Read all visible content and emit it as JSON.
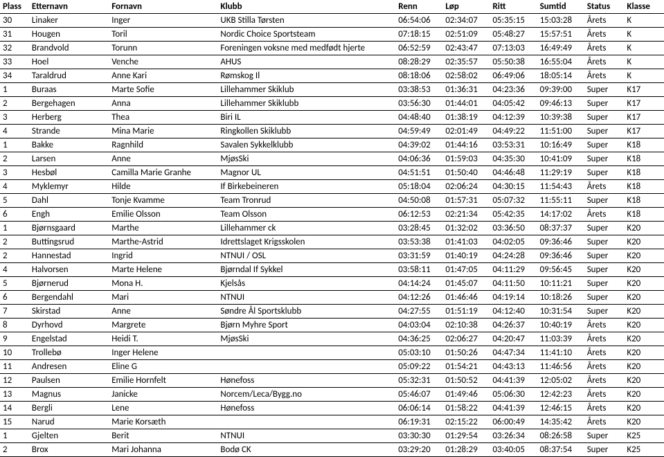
{
  "columns": [
    {
      "key": "plass",
      "label": "Plass",
      "cls": "c-plass"
    },
    {
      "key": "etternavn",
      "label": "Etternavn",
      "cls": "c-etternavn"
    },
    {
      "key": "fornavn",
      "label": "Fornavn",
      "cls": "c-fornavn"
    },
    {
      "key": "klubb",
      "label": "Klubb",
      "cls": "c-klubb"
    },
    {
      "key": "renn",
      "label": "Renn",
      "cls": "c-renn"
    },
    {
      "key": "lop",
      "label": "Løp",
      "cls": "c-lop"
    },
    {
      "key": "ritt",
      "label": "Ritt",
      "cls": "c-ritt"
    },
    {
      "key": "sumtid",
      "label": "Sumtid",
      "cls": "c-sumtid"
    },
    {
      "key": "status",
      "label": "Status",
      "cls": "c-status"
    },
    {
      "key": "klasse",
      "label": "Klasse",
      "cls": "c-klasse"
    }
  ],
  "rows": [
    {
      "plass": "30",
      "etternavn": "Linaker",
      "fornavn": "Inger",
      "klubb": "UKB Stilla Tørsten",
      "renn": "06:54:06",
      "lop": "02:34:07",
      "ritt": "05:35:15",
      "sumtid": "15:03:28",
      "status": "Årets",
      "klasse": "K"
    },
    {
      "plass": "31",
      "etternavn": "Hougen",
      "fornavn": "Toril",
      "klubb": "Nordic Choice Sportsteam",
      "renn": "07:18:15",
      "lop": "02:51:09",
      "ritt": "05:48:27",
      "sumtid": "15:57:51",
      "status": "Årets",
      "klasse": "K"
    },
    {
      "plass": "32",
      "etternavn": "Brandvold",
      "fornavn": "Torunn",
      "klubb": "Foreningen voksne med medfødt hjerte",
      "renn": "06:52:59",
      "lop": "02:43:47",
      "ritt": "07:13:03",
      "sumtid": "16:49:49",
      "status": "Årets",
      "klasse": "K"
    },
    {
      "plass": "33",
      "etternavn": "Hoel",
      "fornavn": "Venche",
      "klubb": "AHUS",
      "renn": "08:28:29",
      "lop": "02:35:57",
      "ritt": "05:50:38",
      "sumtid": "16:55:04",
      "status": "Årets",
      "klasse": "K"
    },
    {
      "plass": "34",
      "etternavn": "Taraldrud",
      "fornavn": "Anne Kari",
      "klubb": "Rømskog Il",
      "renn": "08:18:06",
      "lop": "02:58:02",
      "ritt": "06:49:06",
      "sumtid": "18:05:14",
      "status": "Årets",
      "klasse": "K"
    },
    {
      "plass": "1",
      "etternavn": "Buraas",
      "fornavn": "Marte Sofie",
      "klubb": "Lillehammer Skiklub",
      "renn": "03:38:53",
      "lop": "01:36:31",
      "ritt": "04:23:36",
      "sumtid": "09:39:00",
      "status": "Super",
      "klasse": "K17"
    },
    {
      "plass": "2",
      "etternavn": "Bergehagen",
      "fornavn": "Anna",
      "klubb": "Lillehammer Skiklubb",
      "renn": "03:56:30",
      "lop": "01:44:01",
      "ritt": "04:05:42",
      "sumtid": "09:46:13",
      "status": "Super",
      "klasse": "K17"
    },
    {
      "plass": "3",
      "etternavn": "Herberg",
      "fornavn": "Thea",
      "klubb": "Biri IL",
      "renn": "04:48:40",
      "lop": "01:38:19",
      "ritt": "04:12:39",
      "sumtid": "10:39:38",
      "status": "Super",
      "klasse": "K17"
    },
    {
      "plass": "4",
      "etternavn": "Strande",
      "fornavn": "Mina Marie",
      "klubb": "Ringkollen Skiklubb",
      "renn": "04:59:49",
      "lop": "02:01:49",
      "ritt": "04:49:22",
      "sumtid": "11:51:00",
      "status": "Super",
      "klasse": "K17"
    },
    {
      "plass": "1",
      "etternavn": "Bakke",
      "fornavn": "Ragnhild",
      "klubb": "Savalen Sykkelklubb",
      "renn": "04:39:02",
      "lop": "01:44:16",
      "ritt": "03:53:31",
      "sumtid": "10:16:49",
      "status": "Super",
      "klasse": "K18"
    },
    {
      "plass": "2",
      "etternavn": "Larsen",
      "fornavn": "Anne",
      "klubb": "MjøsSki",
      "renn": "04:06:36",
      "lop": "01:59:03",
      "ritt": "04:35:30",
      "sumtid": "10:41:09",
      "status": "Super",
      "klasse": "K18"
    },
    {
      "plass": "3",
      "etternavn": "Hesbøl",
      "fornavn": "Camilla Marie Granhe",
      "klubb": "Magnor UL",
      "renn": "04:51:51",
      "lop": "01:50:40",
      "ritt": "04:46:48",
      "sumtid": "11:29:19",
      "status": "Super",
      "klasse": "K18"
    },
    {
      "plass": "4",
      "etternavn": "Myklemyr",
      "fornavn": "Hilde",
      "klubb": "If Birkebeineren",
      "renn": "05:18:04",
      "lop": "02:06:24",
      "ritt": "04:30:15",
      "sumtid": "11:54:43",
      "status": "Årets",
      "klasse": "K18"
    },
    {
      "plass": "5",
      "etternavn": "Dahl",
      "fornavn": "Tonje Kvamme",
      "klubb": "Team Tronrud",
      "renn": "04:50:08",
      "lop": "01:57:31",
      "ritt": "05:07:32",
      "sumtid": "11:55:11",
      "status": "Super",
      "klasse": "K18"
    },
    {
      "plass": "6",
      "etternavn": "Engh",
      "fornavn": "Emilie Olsson",
      "klubb": "Team Olsson",
      "renn": "06:12:53",
      "lop": "02:21:34",
      "ritt": "05:42:35",
      "sumtid": "14:17:02",
      "status": "Årets",
      "klasse": "K18"
    },
    {
      "plass": "1",
      "etternavn": "Bjørnsgaard",
      "fornavn": "Marthe",
      "klubb": "Lillehammer ck",
      "renn": "03:28:45",
      "lop": "01:32:02",
      "ritt": "03:36:50",
      "sumtid": "08:37:37",
      "status": "Super",
      "klasse": "K20"
    },
    {
      "plass": "2",
      "etternavn": "Buttingsrud",
      "fornavn": "Marthe-Astrid",
      "klubb": "Idrettslaget Krigsskolen",
      "renn": "03:53:38",
      "lop": "01:41:03",
      "ritt": "04:02:05",
      "sumtid": "09:36:46",
      "status": "Super",
      "klasse": "K20"
    },
    {
      "plass": "2",
      "etternavn": "Hannestad",
      "fornavn": "Ingrid",
      "klubb": "NTNUI / OSL",
      "renn": "03:31:59",
      "lop": "01:40:19",
      "ritt": "04:24:28",
      "sumtid": "09:36:46",
      "status": "Super",
      "klasse": "K20"
    },
    {
      "plass": "4",
      "etternavn": "Halvorsen",
      "fornavn": "Marte Helene",
      "klubb": "Bjørndal If Sykkel",
      "renn": "03:58:11",
      "lop": "01:47:05",
      "ritt": "04:11:29",
      "sumtid": "09:56:45",
      "status": "Super",
      "klasse": "K20"
    },
    {
      "plass": "5",
      "etternavn": "Bjørnerud",
      "fornavn": "Mona H.",
      "klubb": "Kjelsås",
      "renn": "04:14:24",
      "lop": "01:45:07",
      "ritt": "04:11:50",
      "sumtid": "10:11:21",
      "status": "Super",
      "klasse": "K20"
    },
    {
      "plass": "6",
      "etternavn": "Bergendahl",
      "fornavn": "Mari",
      "klubb": "NTNUI",
      "renn": "04:12:26",
      "lop": "01:46:46",
      "ritt": "04:19:14",
      "sumtid": "10:18:26",
      "status": "Super",
      "klasse": "K20"
    },
    {
      "plass": "7",
      "etternavn": "Skirstad",
      "fornavn": "Anne",
      "klubb": "Søndre Ål Sportsklubb",
      "renn": "04:27:55",
      "lop": "01:51:19",
      "ritt": "04:12:40",
      "sumtid": "10:31:54",
      "status": "Super",
      "klasse": "K20"
    },
    {
      "plass": "8",
      "etternavn": "Dyrhovd",
      "fornavn": "Margrete",
      "klubb": "Bjørn Myhre Sport",
      "renn": "04:03:04",
      "lop": "02:10:38",
      "ritt": "04:26:37",
      "sumtid": "10:40:19",
      "status": "Årets",
      "klasse": "K20"
    },
    {
      "plass": "9",
      "etternavn": "Engelstad",
      "fornavn": "Heidi T.",
      "klubb": "MjøsSki",
      "renn": "04:36:25",
      "lop": "02:06:27",
      "ritt": "04:20:47",
      "sumtid": "11:03:39",
      "status": "Årets",
      "klasse": "K20"
    },
    {
      "plass": "10",
      "etternavn": "Trollebø",
      "fornavn": "Inger Helene",
      "klubb": "",
      "renn": "05:03:10",
      "lop": "01:50:26",
      "ritt": "04:47:34",
      "sumtid": "11:41:10",
      "status": "Årets",
      "klasse": "K20"
    },
    {
      "plass": "11",
      "etternavn": "Andresen",
      "fornavn": "Eline G",
      "klubb": "",
      "renn": "05:09:22",
      "lop": "01:54:21",
      "ritt": "04:43:13",
      "sumtid": "11:46:56",
      "status": "Årets",
      "klasse": "K20"
    },
    {
      "plass": "12",
      "etternavn": "Paulsen",
      "fornavn": "Emilie Hornfelt",
      "klubb": "Hønefoss",
      "renn": "05:32:31",
      "lop": "01:50:52",
      "ritt": "04:41:39",
      "sumtid": "12:05:02",
      "status": "Årets",
      "klasse": "K20"
    },
    {
      "plass": "13",
      "etternavn": "Magnus",
      "fornavn": "Janicke",
      "klubb": "Norcem/Leca/Bygg.no",
      "renn": "05:46:07",
      "lop": "01:49:46",
      "ritt": "05:06:30",
      "sumtid": "12:42:23",
      "status": "Årets",
      "klasse": "K20"
    },
    {
      "plass": "14",
      "etternavn": "Bergli",
      "fornavn": "Lene",
      "klubb": "Hønefoss",
      "renn": "06:06:14",
      "lop": "01:58:22",
      "ritt": "04:41:39",
      "sumtid": "12:46:15",
      "status": "Årets",
      "klasse": "K20"
    },
    {
      "plass": "15",
      "etternavn": "Narud",
      "fornavn": "Marie Korsæth",
      "klubb": "",
      "renn": "06:19:31",
      "lop": "02:15:22",
      "ritt": "06:00:49",
      "sumtid": "14:35:42",
      "status": "Årets",
      "klasse": "K20"
    },
    {
      "plass": "1",
      "etternavn": "Gjelten",
      "fornavn": "Berit",
      "klubb": "NTNUI",
      "renn": "03:30:30",
      "lop": "01:29:54",
      "ritt": "03:26:34",
      "sumtid": "08:26:58",
      "status": "Super",
      "klasse": "K25"
    },
    {
      "plass": "2",
      "etternavn": "Brox",
      "fornavn": "Mari Johanna",
      "klubb": "Bodø CK",
      "renn": "03:29:20",
      "lop": "01:28:29",
      "ritt": "03:40:05",
      "sumtid": "08:37:54",
      "status": "Super",
      "klasse": "K25"
    }
  ]
}
